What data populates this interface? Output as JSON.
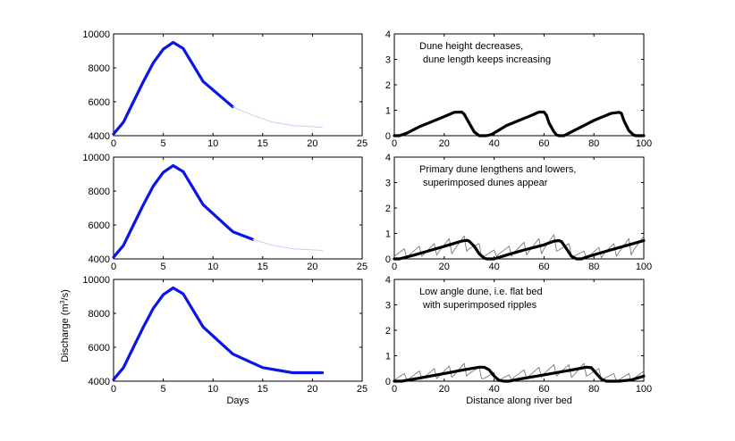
{
  "chart_data": [
    {
      "type": "line",
      "panel": "left-top",
      "xlim": [
        0,
        25
      ],
      "ylim": [
        4000,
        10000
      ],
      "xticks": [
        0,
        5,
        10,
        15,
        20,
        25
      ],
      "yticks": [
        4000,
        6000,
        8000,
        10000
      ],
      "xlabel": "",
      "ylabel": "",
      "annotation": "",
      "series": [
        {
          "style": "bold",
          "color": "#0a14e6",
          "x": [
            0,
            1,
            2,
            3,
            4,
            5,
            6,
            7,
            9,
            12
          ],
          "y": [
            4100,
            4800,
            6000,
            7200,
            8300,
            9100,
            9500,
            9150,
            7200,
            5700
          ]
        },
        {
          "style": "faint",
          "color": "#c8cdf5",
          "x": [
            12,
            14,
            16,
            18,
            21
          ],
          "y": [
            5700,
            5200,
            4800,
            4600,
            4500
          ]
        }
      ]
    },
    {
      "type": "line",
      "panel": "right-top",
      "xlim": [
        0,
        100
      ],
      "ylim": [
        0,
        4
      ],
      "xticks": [
        0,
        20,
        40,
        60,
        80,
        100
      ],
      "yticks": [
        0,
        1,
        2,
        3,
        4
      ],
      "xlabel": "",
      "ylabel": "",
      "annotation": [
        "Dune height decreases,",
        "dune length keeps increasing"
      ],
      "series": [
        {
          "style": "bold",
          "color": "#000000",
          "x": [
            0,
            2,
            5,
            10,
            15,
            20,
            24,
            27,
            28,
            30,
            32,
            34,
            35,
            37,
            39,
            45,
            50,
            55,
            58,
            60,
            61,
            62,
            64,
            65,
            66,
            68,
            72,
            80,
            87,
            90,
            91,
            92,
            94,
            96,
            97,
            100
          ],
          "y": [
            0,
            0,
            0.1,
            0.35,
            0.55,
            0.75,
            0.92,
            0.93,
            0.85,
            0.5,
            0.15,
            0,
            0,
            0,
            0.05,
            0.4,
            0.6,
            0.8,
            0.93,
            0.93,
            0.8,
            0.5,
            0.15,
            0.03,
            0,
            0,
            0.2,
            0.6,
            0.88,
            0.92,
            0.88,
            0.6,
            0.2,
            0.02,
            0,
            0
          ]
        }
      ]
    },
    {
      "type": "line",
      "panel": "left-middle",
      "xlim": [
        0,
        25
      ],
      "ylim": [
        4000,
        10000
      ],
      "xticks": [
        0,
        5,
        10,
        15,
        20,
        25
      ],
      "yticks": [
        4000,
        6000,
        8000,
        10000
      ],
      "xlabel": "",
      "ylabel": "",
      "annotation": "",
      "series": [
        {
          "style": "bold",
          "color": "#0a14e6",
          "x": [
            0,
            1,
            2,
            3,
            4,
            5,
            6,
            7,
            9,
            12,
            14
          ],
          "y": [
            4100,
            4800,
            6000,
            7200,
            8300,
            9100,
            9500,
            9150,
            7200,
            5600,
            5150
          ]
        },
        {
          "style": "faint",
          "color": "#c8cdf5",
          "x": [
            14,
            16,
            18,
            21
          ],
          "y": [
            5150,
            4800,
            4600,
            4500
          ]
        }
      ]
    },
    {
      "type": "line",
      "panel": "right-middle",
      "xlim": [
        0,
        100
      ],
      "ylim": [
        0,
        4
      ],
      "xticks": [
        0,
        20,
        40,
        60,
        80,
        100
      ],
      "yticks": [
        0,
        1,
        2,
        3,
        4
      ],
      "xlabel": "",
      "ylabel": "",
      "annotation": [
        "Primary dune lengthens and lowers,",
        "superimposed dunes appear"
      ],
      "series": [
        {
          "style": "thin",
          "color": "#777777",
          "x": [
            0,
            4,
            5,
            6,
            10,
            11,
            12,
            16,
            17,
            18,
            22,
            23,
            24,
            28,
            29,
            30,
            34,
            35,
            36,
            40,
            41,
            42,
            46,
            47,
            48,
            52,
            53,
            54,
            58,
            59,
            60,
            64,
            65,
            66,
            70,
            71,
            72,
            76,
            77,
            78,
            82,
            83,
            84,
            88,
            89,
            90,
            94,
            95,
            96,
            100
          ],
          "y": [
            0.1,
            0.4,
            0.05,
            0.15,
            0.5,
            0.1,
            0.2,
            0.6,
            0.15,
            0.3,
            0.8,
            0.2,
            0.35,
            0.9,
            0.3,
            0.4,
            0.6,
            0.1,
            0.1,
            0.35,
            0.1,
            0.2,
            0.5,
            0.1,
            0.25,
            0.65,
            0.15,
            0.3,
            0.8,
            0.2,
            0.4,
            0.95,
            0.3,
            0.35,
            0.6,
            0.1,
            0.1,
            0.3,
            0.05,
            0.1,
            0.45,
            0.05,
            0.2,
            0.6,
            0.1,
            0.25,
            0.8,
            0.15,
            0.35,
            0.9
          ]
        },
        {
          "style": "bold",
          "color": "#000000",
          "x": [
            0,
            2,
            8,
            15,
            22,
            27,
            29,
            30,
            32,
            34,
            36,
            37,
            38,
            40,
            45,
            52,
            60,
            64,
            66,
            67,
            69,
            71,
            73,
            74,
            75,
            78,
            85,
            92,
            100
          ],
          "y": [
            0,
            0,
            0.15,
            0.35,
            0.55,
            0.7,
            0.73,
            0.7,
            0.5,
            0.2,
            0.03,
            0,
            0,
            0,
            0.15,
            0.35,
            0.55,
            0.7,
            0.72,
            0.68,
            0.4,
            0.1,
            0,
            0,
            0,
            0.1,
            0.3,
            0.5,
            0.72
          ]
        }
      ]
    },
    {
      "type": "line",
      "panel": "left-bottom",
      "xlim": [
        0,
        25
      ],
      "ylim": [
        4000,
        10000
      ],
      "xticks": [
        0,
        5,
        10,
        15,
        20,
        25
      ],
      "yticks": [
        4000,
        6000,
        8000,
        10000
      ],
      "xlabel": "Days",
      "ylabel": "Discharge (m³/s)",
      "annotation": "",
      "series": [
        {
          "style": "bold",
          "color": "#0a14e6",
          "x": [
            0,
            1,
            2,
            3,
            4,
            5,
            6,
            7,
            9,
            12,
            15,
            18,
            21
          ],
          "y": [
            4100,
            4800,
            6000,
            7200,
            8300,
            9100,
            9500,
            9150,
            7200,
            5600,
            4800,
            4500,
            4500
          ]
        }
      ]
    },
    {
      "type": "line",
      "panel": "right-bottom",
      "xlim": [
        0,
        100
      ],
      "ylim": [
        0,
        4
      ],
      "xticks": [
        0,
        20,
        40,
        60,
        80,
        100
      ],
      "yticks": [
        0,
        1,
        2,
        3,
        4
      ],
      "xlabel": "Distance along river bed",
      "ylabel": "",
      "annotation": [
        "Low angle dune, i.e. flat bed",
        "with superimposed ripples"
      ],
      "series": [
        {
          "style": "thin",
          "color": "#777777",
          "x": [
            0,
            4,
            5,
            6,
            10,
            11,
            12,
            16,
            17,
            18,
            22,
            23,
            24,
            28,
            29,
            30,
            34,
            35,
            36,
            40,
            41,
            42,
            46,
            47,
            48,
            52,
            53,
            54,
            58,
            59,
            60,
            64,
            65,
            66,
            70,
            71,
            72,
            76,
            77,
            78,
            82,
            83,
            84,
            88,
            89,
            90,
            94,
            95,
            96,
            100
          ],
          "y": [
            0.05,
            0.3,
            0.05,
            0.1,
            0.4,
            0.1,
            0.15,
            0.5,
            0.1,
            0.2,
            0.6,
            0.15,
            0.25,
            0.7,
            0.2,
            0.3,
            0.55,
            0.1,
            0.1,
            0.35,
            0.05,
            0.05,
            0.25,
            0.05,
            0.15,
            0.45,
            0.1,
            0.2,
            0.55,
            0.15,
            0.3,
            0.65,
            0.2,
            0.3,
            0.65,
            0.15,
            0.25,
            0.7,
            0.2,
            0.25,
            0.5,
            0.05,
            0.1,
            0.3,
            0.0,
            0.05,
            0.3,
            0.0,
            0.1,
            0.4
          ]
        },
        {
          "style": "bold",
          "color": "#000000",
          "x": [
            0,
            3,
            10,
            20,
            28,
            34,
            36,
            38,
            40,
            42,
            44,
            46,
            50,
            60,
            70,
            77,
            79,
            81,
            83,
            85,
            86,
            90,
            95,
            100
          ],
          "y": [
            0,
            0,
            0.12,
            0.3,
            0.45,
            0.55,
            0.55,
            0.45,
            0.2,
            0.03,
            0,
            0,
            0.08,
            0.25,
            0.42,
            0.55,
            0.53,
            0.3,
            0.08,
            0,
            0,
            0,
            0.05,
            0.2
          ]
        }
      ]
    }
  ]
}
